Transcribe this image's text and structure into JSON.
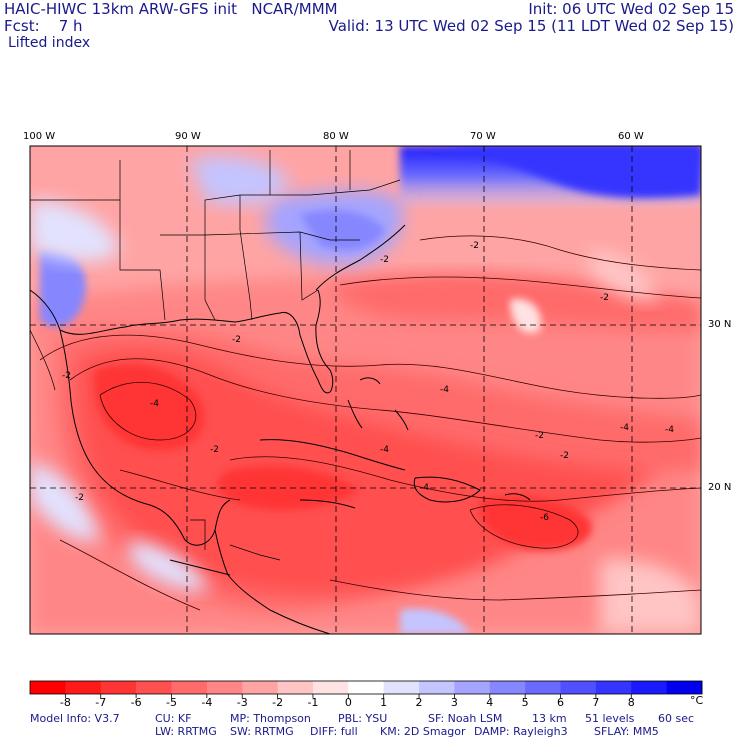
{
  "header": {
    "line1_left": "HAIC-HIWC 13km ARW-GFS init   NCAR/MMM",
    "line1_right": "Init: 06 UTC Wed 02 Sep 15",
    "line2_left": "Fcst:    7 h",
    "line2_right": "Valid: 13 UTC Wed 02 Sep 15 (11 LDT Wed 02 Sep 15)",
    "field": "Lifted index"
  },
  "map": {
    "lon_labels": [
      "100 W",
      "90 W",
      "80 W",
      "70 W",
      "60 W"
    ],
    "lat_labels": [
      "30 N",
      "20 N"
    ],
    "contour_labels": [
      "-2",
      "-2",
      "-2",
      "-4",
      "-4",
      "-2",
      "-4",
      "-4",
      "-2",
      "-2",
      "-4",
      "-6",
      "-2",
      "-2",
      "-4",
      "-2"
    ]
  },
  "colorbar": {
    "colors": [
      "#ff0000",
      "#ff1a1a",
      "#ff3535",
      "#ff5050",
      "#ff6a6a",
      "#ff8686",
      "#ffa4a4",
      "#ffc4c4",
      "#ffe2e2",
      "#ffffff",
      "#e2e2ff",
      "#c4c4ff",
      "#a4a4ff",
      "#8686ff",
      "#6a6aff",
      "#5050ff",
      "#3535ff",
      "#1a1aff",
      "#0000ee"
    ],
    "labels": [
      "-8",
      "-7",
      "-6",
      "-5",
      "-4",
      "-3",
      "-2",
      "-1",
      "0",
      "1",
      "2",
      "3",
      "4",
      "5",
      "6",
      "7",
      "8"
    ],
    "unit": "°C"
  },
  "footer": {
    "line1": [
      "Model Info: V3.7",
      "CU: KF",
      "MP: Thompson",
      "PBL: YSU",
      "SF: Noah LSM",
      "13 km",
      "51 levels",
      "60 sec"
    ],
    "line2": [
      "LW: RRTMG",
      "SW: RRTMG",
      "DIFF: full",
      "KM: 2D Smagor",
      "DAMP: Rayleigh3",
      "SFLAY: MM5"
    ]
  }
}
